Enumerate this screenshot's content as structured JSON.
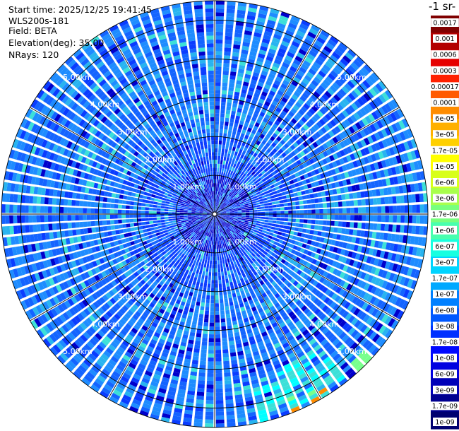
{
  "header": {
    "start_time": "Start time: 2025/12/25 19:41:45",
    "instrument": "WLS200s-181",
    "field": "Field: BETA",
    "elevation": "Elevation(deg): 35.00",
    "nrays": "NRays: 120"
  },
  "colorbar": {
    "title": "-1 sr-",
    "labels": [
      "0.0017",
      "0.001",
      "0.0006",
      "0.0003",
      "0.00017",
      "0.0001",
      "6e-05",
      "3e-05",
      "1.7e-05",
      "1e-05",
      "6e-06",
      "3e-06",
      "1.7e-06",
      "1e-06",
      "6e-07",
      "3e-07",
      "1.7e-07",
      "1e-07",
      "6e-08",
      "3e-08",
      "1.7e-08",
      "1e-08",
      "6e-09",
      "3e-09",
      "1.7e-09",
      "1e-09"
    ],
    "colors": [
      "#800000",
      "#b30000",
      "#e60000",
      "#ff2000",
      "#ff5a00",
      "#ff8c00",
      "#ffb000",
      "#ffd000",
      "#ffff00",
      "#d8ff1a",
      "#a8ff4c",
      "#78ff7e",
      "#48ffae",
      "#18ffe0",
      "#00d4ff",
      "#00a8ff",
      "#0080ff",
      "#0058ff",
      "#0030ff",
      "#0008ff",
      "#0000e0",
      "#0000b8",
      "#000090",
      "#000070"
    ]
  },
  "chart_data": {
    "type": "heatmap",
    "projection": "polar",
    "n_rays": 120,
    "max_range_km": 5.5,
    "range_rings_km": [
      1,
      2,
      3,
      4,
      5
    ],
    "ring_labels": [
      "1.00km",
      "2.00km",
      "3.00km",
      "4.00km",
      "5.00km"
    ],
    "azimuth_lines_deg": [
      0,
      30,
      60,
      90,
      120,
      150,
      180,
      210,
      240,
      270,
      300,
      330
    ],
    "dominant_value": "3e-08 to 1e-07",
    "colormap_colors": [
      "#0000cc",
      "#0a3cff",
      "#1464ff",
      "#1e8cff",
      "#28b4f0",
      "#3ce0d8",
      "#00ffff",
      "#78ff8c",
      "#ffff00",
      "#ff8c00"
    ]
  }
}
